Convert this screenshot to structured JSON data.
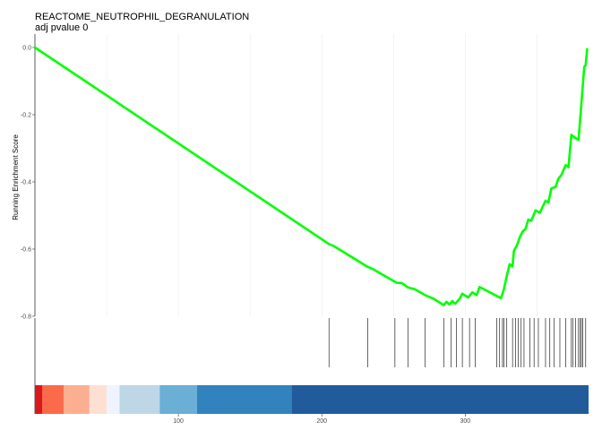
{
  "chart_data": {
    "type": "line",
    "title": "REACTOME_NEUTROPHIL_DEGRANULATION",
    "subtitle": "adj pvalue 0",
    "xlabel": "",
    "ylabel": "Running Enrichment Score",
    "xlim": [
      0,
      386
    ],
    "ylim": [
      -0.8,
      0.0
    ],
    "x_ticks": [
      100,
      200,
      300
    ],
    "y_ticks": [
      0.0,
      -0.2,
      -0.4,
      -0.6,
      -0.8
    ],
    "y_tick_labels": [
      "0.0",
      "-0.2",
      "-0.4",
      "-0.6",
      "-0.8"
    ],
    "grid": true,
    "line_color": "#00ff00",
    "series": [
      {
        "values_x": [
          0,
          205,
          208,
          232,
          235,
          252,
          256,
          260,
          265,
          272,
          278,
          285,
          287,
          289,
          291,
          293,
          296,
          298,
          302,
          305,
          308,
          310,
          325,
          327,
          329,
          331,
          333,
          334,
          336,
          338,
          340,
          342,
          344,
          346,
          349,
          352,
          356,
          358,
          360,
          363,
          365,
          367,
          370,
          372,
          374,
          377,
          379,
          381,
          383,
          384,
          385
        ],
        "values_y": [
          0.0,
          -0.585,
          -0.59,
          -0.653,
          -0.658,
          -0.7,
          -0.702,
          -0.714,
          -0.72,
          -0.737,
          -0.748,
          -0.767,
          -0.757,
          -0.765,
          -0.755,
          -0.763,
          -0.749,
          -0.733,
          -0.744,
          -0.729,
          -0.737,
          -0.713,
          -0.746,
          -0.72,
          -0.68,
          -0.645,
          -0.652,
          -0.605,
          -0.59,
          -0.565,
          -0.548,
          -0.54,
          -0.512,
          -0.516,
          -0.485,
          -0.492,
          -0.456,
          -0.462,
          -0.42,
          -0.415,
          -0.39,
          -0.38,
          -0.35,
          -0.356,
          -0.26,
          -0.27,
          -0.275,
          -0.166,
          -0.058,
          -0.052,
          -0.005
        ]
      }
    ],
    "hit_positions": [
      205,
      232,
      251,
      260,
      272,
      285,
      290,
      294,
      298,
      303,
      307,
      322,
      324,
      326,
      327,
      329,
      333,
      335,
      337,
      339,
      341,
      345,
      348,
      351,
      356,
      359,
      362,
      366,
      370,
      374,
      375,
      377,
      379,
      380,
      381,
      382,
      384
    ],
    "rank_heatmap": [
      {
        "from": 0,
        "to": 5,
        "color": "#d7191c"
      },
      {
        "from": 5,
        "to": 20,
        "color": "#fb6a4a"
      },
      {
        "from": 20,
        "to": 38,
        "color": "#fcae91"
      },
      {
        "from": 38,
        "to": 50,
        "color": "#fee0d2"
      },
      {
        "from": 50,
        "to": 59,
        "color": "#eff3ff"
      },
      {
        "from": 59,
        "to": 87,
        "color": "#bdd7e7"
      },
      {
        "from": 87,
        "to": 113,
        "color": "#6baed6"
      },
      {
        "from": 113,
        "to": 179,
        "color": "#3182bd"
      },
      {
        "from": 179,
        "to": 386,
        "color": "#225b9c"
      }
    ]
  }
}
